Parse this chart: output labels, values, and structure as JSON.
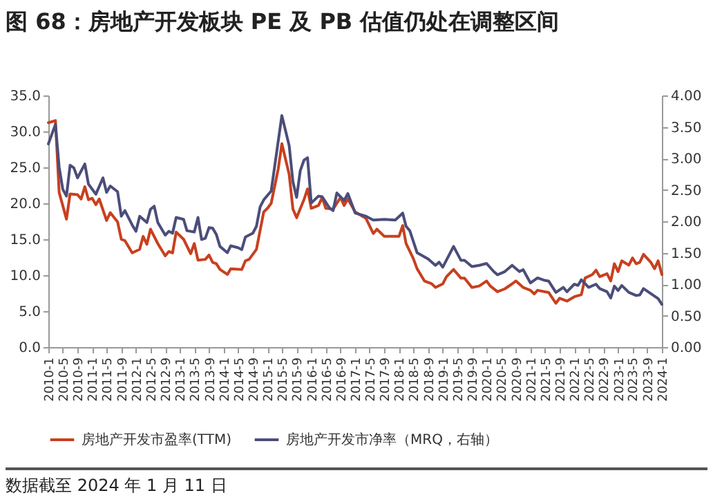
{
  "chart_data": {
    "type": "line",
    "title": "图 68：房地产开发板块 PE 及 PB 估值仍处在调整区间",
    "annotations": [
      "数据截至 2024 年 1 月 11 日"
    ],
    "legend": "bottom",
    "xlim": [
      "2010-01",
      "2024-01"
    ],
    "xticks": [
      {
        "value": "2010-01",
        "label": "2010-1"
      },
      {
        "value": "2010-05",
        "label": "2010-5"
      },
      {
        "value": "2010-09",
        "label": "2010-9"
      },
      {
        "value": "2011-01",
        "label": "2011-1"
      },
      {
        "value": "2011-05",
        "label": "2011-5"
      },
      {
        "value": "2011-09",
        "label": "2011-9"
      },
      {
        "value": "2012-01",
        "label": "2012-1"
      },
      {
        "value": "2012-05",
        "label": "2012-5"
      },
      {
        "value": "2012-09",
        "label": "2012-9"
      },
      {
        "value": "2013-01",
        "label": "2013-1"
      },
      {
        "value": "2013-05",
        "label": "2013-5"
      },
      {
        "value": "2013-09",
        "label": "2013-9"
      },
      {
        "value": "2014-01",
        "label": "2014-1"
      },
      {
        "value": "2014-05",
        "label": "2014-5"
      },
      {
        "value": "2014-09",
        "label": "2014-9"
      },
      {
        "value": "2015-01",
        "label": "2015-1"
      },
      {
        "value": "2015-05",
        "label": "2015-5"
      },
      {
        "value": "2015-09",
        "label": "2015-9"
      },
      {
        "value": "2016-01",
        "label": "2016-1"
      },
      {
        "value": "2016-05",
        "label": "2016-5"
      },
      {
        "value": "2016-09",
        "label": "2016-9"
      },
      {
        "value": "2017-01",
        "label": "2017-1"
      },
      {
        "value": "2017-05",
        "label": "2017-5"
      },
      {
        "value": "2017-09",
        "label": "2017-9"
      },
      {
        "value": "2018-01",
        "label": "2018-1"
      },
      {
        "value": "2018-05",
        "label": "2018-5"
      },
      {
        "value": "2018-09",
        "label": "2018-9"
      },
      {
        "value": "2019-01",
        "label": "2019-1"
      },
      {
        "value": "2019-05",
        "label": "2019-5"
      },
      {
        "value": "2019-09",
        "label": "2019-9"
      },
      {
        "value": "2020-01",
        "label": "2020-1"
      },
      {
        "value": "2020-05",
        "label": "2020-5"
      },
      {
        "value": "2020-09",
        "label": "2020-9"
      },
      {
        "value": "2021-01",
        "label": "2021-1"
      },
      {
        "value": "2021-05",
        "label": "2021-5"
      },
      {
        "value": "2021-09",
        "label": "2021-9"
      },
      {
        "value": "2022-01",
        "label": "2022-1"
      },
      {
        "value": "2022-05",
        "label": "2022-5"
      },
      {
        "value": "2022-09",
        "label": "2022-9"
      },
      {
        "value": "2023-01",
        "label": "2023-1"
      },
      {
        "value": "2023-05",
        "label": "2023-5"
      },
      {
        "value": "2023-09",
        "label": "2023-9"
      },
      {
        "value": "2024-01",
        "label": "2024-1"
      }
    ],
    "ylim": [
      0,
      35
    ],
    "yticks": [
      {
        "value": 0,
        "label": "0.0"
      },
      {
        "value": 5,
        "label": "5.0"
      },
      {
        "value": 10,
        "label": "10.0"
      },
      {
        "value": 15,
        "label": "15.0"
      },
      {
        "value": 20,
        "label": "20.0"
      },
      {
        "value": 25,
        "label": "25.0"
      },
      {
        "value": 30,
        "label": "30.0"
      },
      {
        "value": 35,
        "label": "35.0"
      }
    ],
    "y2lim": [
      0,
      4
    ],
    "y2ticks": [
      {
        "value": 0,
        "label": "0.00"
      },
      {
        "value": 0.5,
        "label": "0.50"
      },
      {
        "value": 1,
        "label": "1.00"
      },
      {
        "value": 1.5,
        "label": "1.50"
      },
      {
        "value": 2,
        "label": "2.00"
      },
      {
        "value": 2.5,
        "label": "2.50"
      },
      {
        "value": 3,
        "label": "3.00"
      },
      {
        "value": 3.5,
        "label": "3.50"
      },
      {
        "value": 4,
        "label": "4.00"
      }
    ],
    "series": [
      {
        "name": "房地产开发市盈率(TTM)",
        "color": "#c8401e",
        "x": [
          "2010-01",
          "2010-03",
          "2010-04",
          "2010-06",
          "2010-07",
          "2010-09",
          "2010-10",
          "2010-11",
          "2010-12",
          "2011-01",
          "2011-02",
          "2011-03",
          "2011-05",
          "2011-06",
          "2011-08",
          "2011-09",
          "2011-10",
          "2011-12",
          "2012-02",
          "2012-03",
          "2012-04",
          "2012-05",
          "2012-07",
          "2012-09",
          "2012-10",
          "2012-11",
          "2012-12",
          "2013-02",
          "2013-04",
          "2013-05",
          "2013-06",
          "2013-08",
          "2013-09",
          "2013-10",
          "2013-11",
          "2013-12",
          "2014-02",
          "2014-03",
          "2014-06",
          "2014-07",
          "2014-08",
          "2014-10",
          "2014-12",
          "2015-01",
          "2015-02",
          "2015-04",
          "2015-05",
          "2015-07",
          "2015-08",
          "2015-09",
          "2015-11",
          "2015-12",
          "2016-01",
          "2016-03",
          "2016-04",
          "2016-05",
          "2016-07",
          "2016-09",
          "2016-10",
          "2016-11",
          "2017-01",
          "2017-04",
          "2017-06",
          "2017-07",
          "2017-09",
          "2018-01",
          "2018-02",
          "2018-03",
          "2018-05",
          "2018-06",
          "2018-08",
          "2018-10",
          "2018-11",
          "2019-01",
          "2019-02",
          "2019-04",
          "2019-06",
          "2019-07",
          "2019-09",
          "2019-11",
          "2020-01",
          "2020-02",
          "2020-04",
          "2020-06",
          "2020-08",
          "2020-09",
          "2020-11",
          "2021-01",
          "2021-02",
          "2021-03",
          "2021-06",
          "2021-08",
          "2021-09",
          "2021-11",
          "2022-01",
          "2022-03",
          "2022-04",
          "2022-06",
          "2022-07",
          "2022-08",
          "2022-10",
          "2022-11",
          "2022-12",
          "2023-01",
          "2023-02",
          "2023-04",
          "2023-05",
          "2023-06",
          "2023-07",
          "2023-08",
          "2023-10",
          "2023-11",
          "2023-12",
          "2024-01"
        ],
        "values": [
          31.2,
          31.5,
          21.5,
          17.8,
          21.3,
          21.2,
          20.6,
          22.3,
          20.5,
          20.7,
          19.8,
          20.6,
          17.6,
          18.7,
          17.4,
          15,
          14.8,
          13.1,
          13.6,
          15.4,
          14.3,
          16.4,
          14.4,
          12.7,
          13.3,
          13.1,
          16,
          15,
          13,
          14.4,
          12.1,
          12.2,
          12.8,
          11.8,
          11.6,
          10.8,
          10.1,
          10.9,
          10.8,
          12,
          12.2,
          13.6,
          18.8,
          19.3,
          20,
          24.8,
          28.3,
          24,
          19.2,
          18,
          20.5,
          22,
          19.3,
          19.7,
          20.8,
          19.3,
          19.2,
          20.8,
          19.7,
          20.6,
          18.8,
          17.9,
          15.8,
          16.4,
          15.4,
          15.4,
          16.9,
          14.4,
          12.3,
          10.9,
          9.2,
          8.8,
          8.3,
          8.8,
          9.8,
          10.8,
          9.6,
          9.6,
          8.3,
          8.5,
          9.2,
          8.5,
          7.7,
          8.1,
          8.8,
          9.2,
          8.3,
          7.9,
          7.4,
          7.9,
          7.6,
          6.1,
          6.8,
          6.4,
          7,
          7.3,
          9.6,
          10.1,
          10.7,
          9.8,
          10.2,
          9.2,
          11.6,
          10.5,
          12,
          11.4,
          12.4,
          11.6,
          11.8,
          12.9,
          11.8,
          10.9,
          12,
          10.1
        ]
      },
      {
        "name": "房地产开发市净率（MRQ，右轴）",
        "color": "#4b4d7a",
        "axis": "y2",
        "x": [
          "2010-01",
          "2010-03",
          "2010-04",
          "2010-05",
          "2010-06",
          "2010-07",
          "2010-08",
          "2010-09",
          "2010-11",
          "2010-12",
          "2011-02",
          "2011-04",
          "2011-05",
          "2011-06",
          "2011-08",
          "2011-09",
          "2011-10",
          "2011-12",
          "2012-01",
          "2012-02",
          "2012-04",
          "2012-05",
          "2012-06",
          "2012-07",
          "2012-09",
          "2012-10",
          "2012-11",
          "2012-12",
          "2013-02",
          "2013-03",
          "2013-05",
          "2013-06",
          "2013-07",
          "2013-08",
          "2013-09",
          "2013-10",
          "2013-11",
          "2013-12",
          "2014-02",
          "2014-03",
          "2014-05",
          "2014-06",
          "2014-07",
          "2014-09",
          "2014-10",
          "2014-11",
          "2014-12",
          "2015-02",
          "2015-03",
          "2015-05",
          "2015-07",
          "2015-08",
          "2015-09",
          "2015-10",
          "2015-11",
          "2015-12",
          "2016-01",
          "2016-03",
          "2016-04",
          "2016-06",
          "2016-07",
          "2016-08",
          "2016-10",
          "2016-11",
          "2017-01",
          "2017-04",
          "2017-06",
          "2017-09",
          "2017-12",
          "2018-02",
          "2018-03",
          "2018-04",
          "2018-06",
          "2018-09",
          "2018-11",
          "2018-12",
          "2019-01",
          "2019-04",
          "2019-06",
          "2019-07",
          "2019-09",
          "2019-11",
          "2020-01",
          "2020-03",
          "2020-04",
          "2020-06",
          "2020-08",
          "2020-10",
          "2020-11",
          "2021-01",
          "2021-03",
          "2021-05",
          "2021-06",
          "2021-08",
          "2021-10",
          "2021-11",
          "2022-01",
          "2022-02",
          "2022-03",
          "2022-05",
          "2022-07",
          "2022-08",
          "2022-10",
          "2022-11",
          "2022-12",
          "2023-01",
          "2023-02",
          "2023-04",
          "2023-06",
          "2023-07",
          "2023-08",
          "2023-10",
          "2023-12",
          "2024-01"
        ],
        "values": [
          3.23,
          3.54,
          2.86,
          2.51,
          2.4,
          2.89,
          2.85,
          2.69,
          2.91,
          2.59,
          2.43,
          2.69,
          2.46,
          2.56,
          2.47,
          2.08,
          2.17,
          1.94,
          1.84,
          2.08,
          1.98,
          2.19,
          2.24,
          1.98,
          1.78,
          1.84,
          1.81,
          2.06,
          2.03,
          1.85,
          1.83,
          2.06,
          1.71,
          1.73,
          1.9,
          1.89,
          1.79,
          1.6,
          1.5,
          1.61,
          1.58,
          1.55,
          1.75,
          1.81,
          1.92,
          2.23,
          2.34,
          2.48,
          2.86,
          3.68,
          3.2,
          2.63,
          2.38,
          2.8,
          2.97,
          3.01,
          2.29,
          2.4,
          2.39,
          2.21,
          2.17,
          2.45,
          2.33,
          2.44,
          2.13,
          2.08,
          2.02,
          2.03,
          2.02,
          2.13,
          1.92,
          1.85,
          1.5,
          1.4,
          1.3,
          1.35,
          1.27,
          1.6,
          1.38,
          1.38,
          1.28,
          1.3,
          1.33,
          1.2,
          1.15,
          1.2,
          1.3,
          1.2,
          1.23,
          1.02,
          1.1,
          1.06,
          1.05,
          0.87,
          0.95,
          0.88,
          1,
          0.98,
          1.07,
          0.95,
          1,
          0.93,
          0.88,
          0.78,
          0.97,
          0.9,
          0.98,
          0.87,
          0.82,
          0.83,
          0.93,
          0.85,
          0.77,
          0.68
        ]
      }
    ]
  }
}
